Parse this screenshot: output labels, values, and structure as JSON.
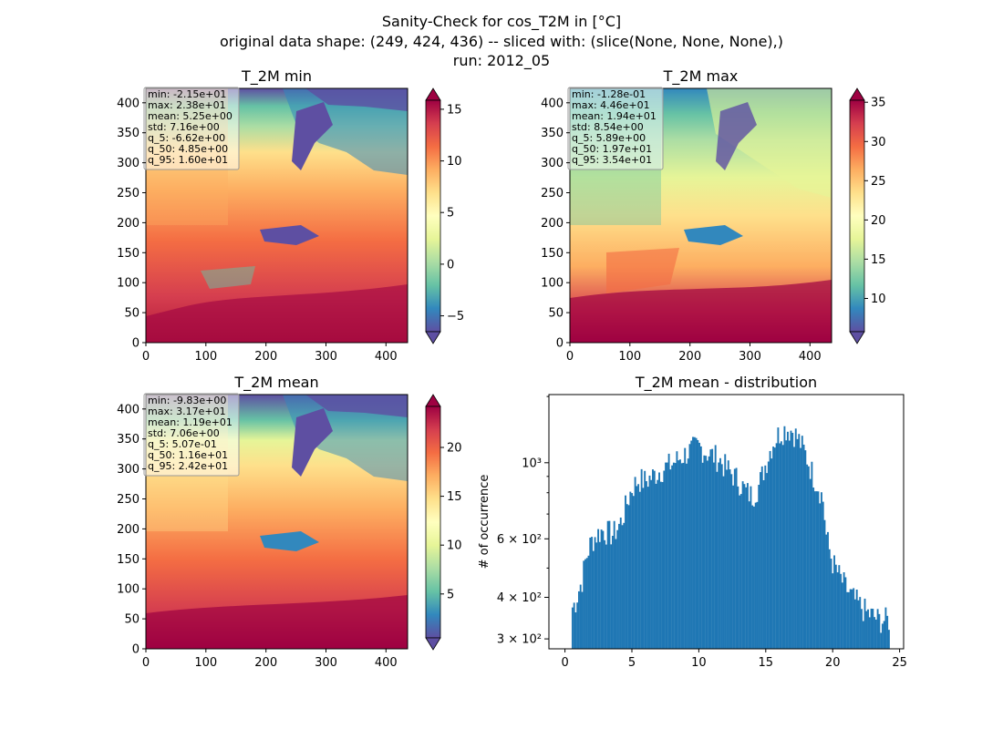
{
  "figure": {
    "suptitle": [
      "Sanity-Check for cos_T2M in [°C]",
      "original data shape: (249, 424, 436) -- sliced with: (slice(None, None, None),)",
      "run: 2012_05"
    ]
  },
  "maps": [
    {
      "id": "min",
      "title": "T_2M min",
      "x_ticks": [
        "0",
        "100",
        "200",
        "300",
        "400"
      ],
      "y_ticks": [
        "0",
        "50",
        "100",
        "150",
        "200",
        "250",
        "300",
        "350",
        "400"
      ],
      "colorbar": {
        "min": -7.5,
        "max": 16.5,
        "ticks": [
          "−5",
          "0",
          "5",
          "10",
          "15"
        ],
        "tick_values": [
          -5,
          0,
          5,
          10,
          15
        ],
        "cmap": "Spectral_r",
        "extend": "both"
      },
      "stats": [
        "min: -2.15e+01",
        "max: 2.38e+01",
        "mean: 5.25e+00",
        "std: 7.16e+00",
        "q_5: -6.62e+00",
        "q_50: 4.85e+00",
        "q_95: 1.60e+01"
      ]
    },
    {
      "id": "max",
      "title": "T_2M max",
      "x_ticks": [
        "0",
        "100",
        "200",
        "300",
        "400"
      ],
      "y_ticks": [
        "0",
        "50",
        "100",
        "150",
        "200",
        "250",
        "300",
        "350",
        "400"
      ],
      "colorbar": {
        "min": 5.9,
        "max": 35.4,
        "ticks": [
          "10",
          "15",
          "20",
          "25",
          "30",
          "35"
        ],
        "tick_values": [
          10,
          15,
          20,
          25,
          30,
          35
        ],
        "cmap": "Spectral_r",
        "extend": "both"
      },
      "stats": [
        "min: -1.28e-01",
        "max: 4.46e+01",
        "mean: 1.94e+01",
        "std: 8.54e+00",
        "q_5: 5.89e+00",
        "q_50: 1.97e+01",
        "q_95: 3.54e+01"
      ]
    },
    {
      "id": "mean",
      "title": "T_2M mean",
      "x_ticks": [
        "0",
        "100",
        "200",
        "300",
        "400"
      ],
      "y_ticks": [
        "0",
        "50",
        "100",
        "150",
        "200",
        "250",
        "300",
        "350",
        "400"
      ],
      "colorbar": {
        "min": 0.5,
        "max": 24.2,
        "ticks": [
          "5",
          "10",
          "15",
          "20"
        ],
        "tick_values": [
          5,
          10,
          15,
          20
        ],
        "cmap": "Spectral_r",
        "extend": "both"
      },
      "stats": [
        "min: -9.83e+00",
        "max: 3.17e+01",
        "mean: 1.19e+01",
        "std: 7.06e+00",
        "q_5: 5.07e-01",
        "q_50: 1.16e+01",
        "q_95: 2.42e+01"
      ]
    }
  ],
  "chart_data": {
    "type": "bar",
    "title": "T_2M mean - distribution",
    "xlabel": "",
    "ylabel": "# of occurrence",
    "yscale": "log",
    "xlim": [
      -1.2,
      25.3
    ],
    "ylim": [
      275,
      1800
    ],
    "x_ticks": [
      "0",
      "5",
      "10",
      "15",
      "20",
      "25"
    ],
    "y_ticks": [
      "3 × 10²",
      "4 × 10²",
      "6 × 10²",
      "10³"
    ],
    "color": "#1f77b4",
    "bins": {
      "start": 0.5,
      "width": 0.12
    },
    "anchors": [
      [
        0.5,
        370
      ],
      [
        0.8,
        390
      ],
      [
        1.0,
        420
      ],
      [
        1.3,
        460
      ],
      [
        1.5,
        520
      ],
      [
        1.8,
        580
      ],
      [
        2.0,
        610
      ],
      [
        2.4,
        640
      ],
      [
        2.8,
        660
      ],
      [
        3.2,
        650
      ],
      [
        3.6,
        640
      ],
      [
        4.0,
        680
      ],
      [
        4.3,
        720
      ],
      [
        4.6,
        800
      ],
      [
        5.0,
        900
      ],
      [
        5.5,
        960
      ],
      [
        6.0,
        950
      ],
      [
        6.5,
        980
      ],
      [
        7.0,
        1020
      ],
      [
        7.5,
        1050
      ],
      [
        8.0,
        1080
      ],
      [
        8.5,
        1120
      ],
      [
        9.0,
        1160
      ],
      [
        9.5,
        1200
      ],
      [
        10.0,
        1230
      ],
      [
        10.5,
        1180
      ],
      [
        11.0,
        1150
      ],
      [
        11.5,
        1120
      ],
      [
        12.0,
        1050
      ],
      [
        12.5,
        1000
      ],
      [
        13.0,
        950
      ],
      [
        13.5,
        880
      ],
      [
        14.0,
        850
      ],
      [
        14.5,
        920
      ],
      [
        15.0,
        1080
      ],
      [
        15.5,
        1250
      ],
      [
        16.0,
        1350
      ],
      [
        16.5,
        1400
      ],
      [
        17.0,
        1380
      ],
      [
        17.5,
        1280
      ],
      [
        18.0,
        1150
      ],
      [
        18.5,
        1000
      ],
      [
        19.0,
        900
      ],
      [
        19.3,
        820
      ],
      [
        19.5,
        640
      ],
      [
        19.8,
        560
      ],
      [
        20.0,
        520
      ],
      [
        20.5,
        470
      ],
      [
        21.0,
        430
      ],
      [
        21.5,
        400
      ],
      [
        22.0,
        380
      ],
      [
        22.5,
        360
      ],
      [
        23.0,
        350
      ],
      [
        23.5,
        340
      ],
      [
        24.0,
        340
      ],
      [
        24.2,
        340
      ]
    ]
  }
}
